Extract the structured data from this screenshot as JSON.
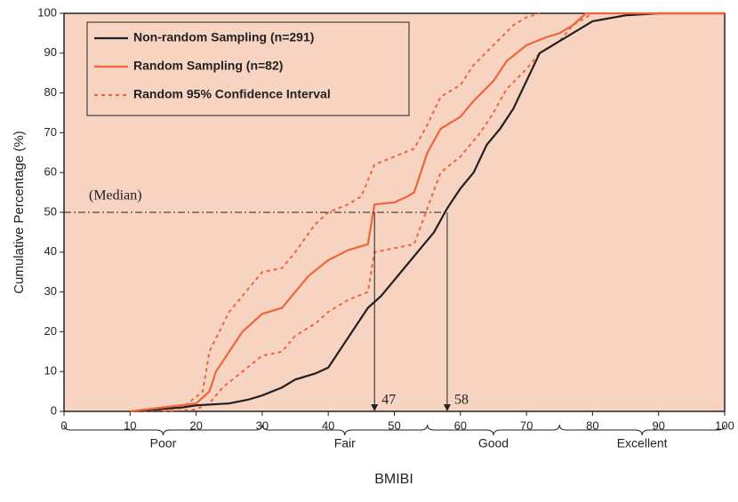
{
  "chart_data": {
    "type": "line",
    "xlabel": "BMIBI",
    "ylabel": "Cumulative Percentage (%)",
    "xlim": [
      0,
      100
    ],
    "ylim": [
      0,
      100
    ],
    "xticks": [
      0,
      10,
      20,
      30,
      40,
      50,
      60,
      70,
      80,
      90,
      100
    ],
    "yticks": [
      0,
      10,
      20,
      30,
      40,
      50,
      60,
      70,
      80,
      90,
      100
    ],
    "legend": "upper left",
    "series": [
      {
        "name": "Non-random Sampling (n=291)",
        "color": "#231f20",
        "x": [
          10,
          18,
          20,
          25,
          28,
          30,
          33,
          35,
          38,
          40,
          42,
          44,
          46,
          48,
          50,
          52,
          54,
          56,
          58,
          60,
          62,
          64,
          66,
          68,
          70,
          72,
          75,
          78,
          80,
          85,
          90,
          100
        ],
        "values": [
          0,
          1,
          1.5,
          2,
          3,
          4,
          6,
          8,
          9.5,
          11,
          16,
          21,
          26,
          29,
          33,
          37,
          41,
          45,
          51,
          56,
          60,
          67,
          71,
          76,
          83,
          90,
          93,
          96,
          98,
          99.5,
          100,
          100
        ]
      },
      {
        "name": "Random Sampling (n=82)",
        "color": "#f0643c",
        "x": [
          10,
          15,
          20,
          22,
          23,
          25,
          27,
          30,
          33,
          35,
          37,
          40,
          43,
          46,
          47,
          50,
          52,
          53,
          55,
          57,
          60,
          62,
          65,
          67,
          70,
          73,
          75,
          77,
          79,
          82,
          100
        ],
        "values": [
          0,
          1,
          2,
          5,
          10,
          15,
          20,
          24.5,
          26,
          30,
          34,
          38,
          40.5,
          42,
          52,
          52.5,
          54,
          55,
          65,
          71,
          74,
          78,
          83,
          88,
          92,
          94,
          95,
          97,
          100,
          100,
          100
        ]
      }
    ],
    "confidence_interval": {
      "name": "Random 95% Confidence Interval",
      "color": "#f0643c",
      "upper": {
        "x": [
          12,
          18,
          21,
          22,
          25,
          28,
          30,
          33,
          35,
          38,
          40,
          43,
          45,
          47,
          50,
          53,
          55,
          57,
          60,
          62,
          65,
          68,
          70,
          72
        ],
        "values": [
          0,
          1,
          5,
          15,
          25,
          31,
          35,
          36,
          40,
          47,
          50,
          52,
          54,
          62,
          64,
          66,
          72,
          79,
          82,
          87,
          92,
          97,
          99,
          100
        ]
      },
      "lower": {
        "x": [
          15,
          20,
          22,
          24,
          27,
          30,
          33,
          35,
          38,
          40,
          43,
          46,
          47,
          50,
          53,
          55,
          57,
          60,
          63,
          65,
          67,
          70,
          72,
          75,
          77,
          80
        ],
        "values": [
          0,
          0.5,
          2,
          6,
          10,
          14,
          15,
          19,
          22,
          25,
          28,
          30,
          40,
          41,
          42,
          51,
          60,
          64,
          70,
          75,
          81,
          86,
          90,
          93,
          97,
          100
        ]
      }
    },
    "median": {
      "label": "(Median)",
      "value": 50
    },
    "markers": [
      47,
      58
    ],
    "ranges": [
      {
        "label": "Poor",
        "from": 0,
        "to": 30
      },
      {
        "label": "Fair",
        "from": 30,
        "to": 55
      },
      {
        "label": "Good",
        "from": 55,
        "to": 75
      },
      {
        "label": "Excellent",
        "from": 75,
        "to": 100
      }
    ]
  }
}
